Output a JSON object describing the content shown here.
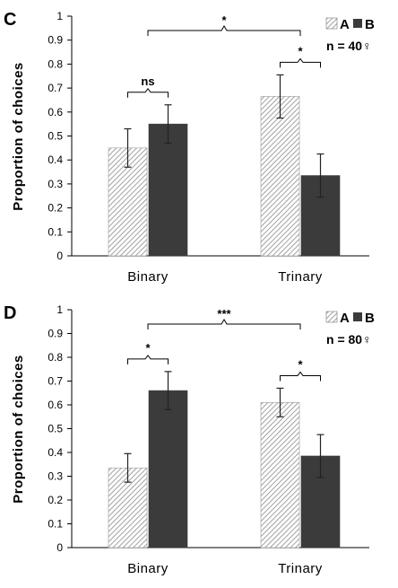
{
  "chart_data": [
    {
      "type": "bar",
      "panel_label": "C",
      "ylabel": "Proportion of choices",
      "ylim": [
        0,
        1
      ],
      "yticks": [
        "0",
        "0.1",
        "0.2",
        "0.3",
        "0.4",
        "0.5",
        "0.6",
        "0.7",
        "0.8",
        "0.9",
        "1"
      ],
      "categories": [
        "Binary",
        "Trinary"
      ],
      "series": [
        {
          "name": "A",
          "values": [
            0.45,
            0.665
          ],
          "err": [
            0.08,
            0.09
          ],
          "color": "#ffffff",
          "pattern": "hatch"
        },
        {
          "name": "B",
          "values": [
            0.55,
            0.335
          ],
          "err": [
            0.08,
            0.09
          ],
          "color": "#3b3b3b",
          "pattern": "solid"
        }
      ],
      "significance": {
        "within": [
          "ns",
          "*"
        ],
        "between": "*"
      },
      "legend": {
        "a": "A",
        "b": "B",
        "position": "top-right"
      },
      "sample": "n = 40♀"
    },
    {
      "type": "bar",
      "panel_label": "D",
      "ylabel": "Proportion of choices",
      "ylim": [
        0,
        1
      ],
      "yticks": [
        "0",
        "0.1",
        "0.2",
        "0.3",
        "0.4",
        "0.5",
        "0.6",
        "0.7",
        "0.8",
        "0.9",
        "1"
      ],
      "categories": [
        "Binary",
        "Trinary"
      ],
      "series": [
        {
          "name": "A",
          "values": [
            0.335,
            0.61
          ],
          "err": [
            0.06,
            0.06
          ],
          "color": "#ffffff",
          "pattern": "hatch"
        },
        {
          "name": "B",
          "values": [
            0.66,
            0.385
          ],
          "err": [
            0.08,
            0.09
          ],
          "color": "#3b3b3b",
          "pattern": "solid"
        }
      ],
      "significance": {
        "within": [
          "*",
          "*"
        ],
        "between": "***"
      },
      "legend": {
        "a": "A",
        "b": "B",
        "position": "top-right"
      },
      "sample": "n = 80♀"
    }
  ]
}
